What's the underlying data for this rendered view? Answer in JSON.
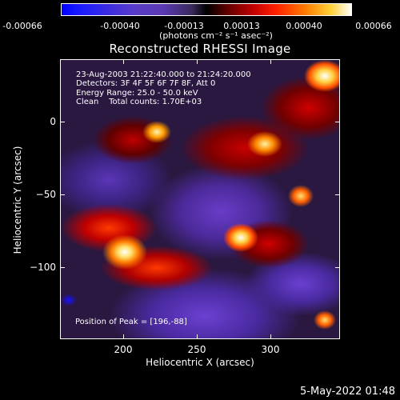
{
  "colorbar": {
    "labels": [
      "-0.00066",
      "-0.00040",
      "-0.00013",
      "0.00013",
      "0.00040",
      "0.00066"
    ],
    "units": "(photons cm⁻² s⁻¹ asec⁻²)"
  },
  "title": "Reconstructed RHESSI Image",
  "info": {
    "line1": "23-Aug-2003 21:22:40.000 to 21:24:20.000",
    "line2": "Detectors: 3F 4F 5F 6F 7F 8F, Att 0",
    "line3": "Energy Range: 25.0 - 50.0 keV",
    "line4": "Clean    Total counts: 1.70E+03",
    "peak": "Position of Peak = [196,-88]"
  },
  "axes": {
    "x_title": "Heliocentric X (arcsec)",
    "y_title": "Heliocentric Y (arcsec)",
    "x_ticks": [
      "200",
      "250",
      "300"
    ],
    "y_ticks": [
      "0",
      "−50",
      "−100"
    ]
  },
  "footer": {
    "date": "5-May-2022 01:48"
  }
}
